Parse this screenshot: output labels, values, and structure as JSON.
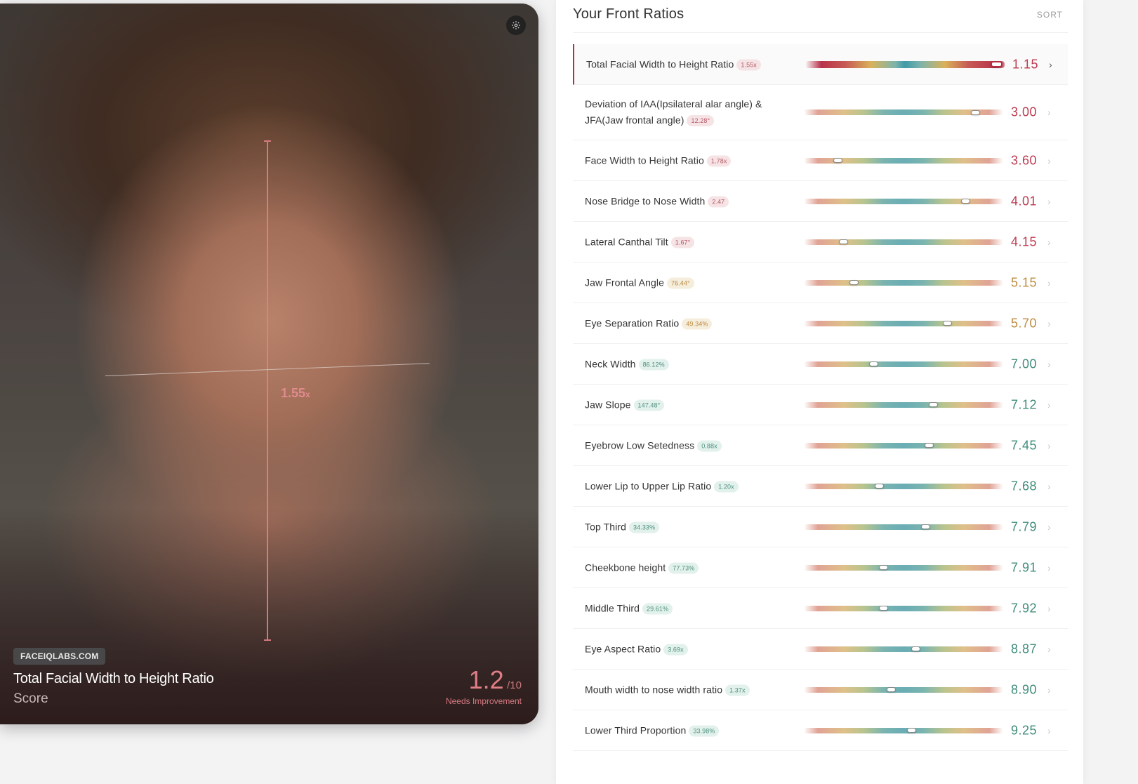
{
  "photo": {
    "measurement_value": "1.55",
    "measurement_unit": "x",
    "brand": "FACEIQLABS.COM",
    "title": "Total Facial Width to Height Ratio",
    "subtitle": "Score",
    "score": "1.2",
    "score_max": "/10",
    "score_status": "Needs Improvement",
    "icons": {
      "settings": "gear-icon"
    }
  },
  "panel": {
    "title": "Your Front Ratios",
    "sort_label": "SORT",
    "colors": {
      "red": "#bd3a4f",
      "orange": "#bf8b3f",
      "green": "#3f8c7a"
    },
    "ratios": [
      {
        "label": "Total Facial Width to Height Ratio",
        "value": "1.55x",
        "score": "1.15",
        "tone": "red",
        "marker": 0.96
      },
      {
        "label": "Deviation of IAA(Ipsilateral alar angle) & JFA(Jaw frontal angle)",
        "value": "12.28°",
        "score": "3.00",
        "tone": "red",
        "marker": 0.86
      },
      {
        "label": "Face Width to Height Ratio",
        "value": "1.78x",
        "score": "3.60",
        "tone": "red",
        "marker": 0.17
      },
      {
        "label": "Nose Bridge to Nose Width",
        "value": "2.47",
        "score": "4.01",
        "tone": "red",
        "marker": 0.81
      },
      {
        "label": "Lateral Canthal Tilt",
        "value": "1.67°",
        "score": "4.15",
        "tone": "red",
        "marker": 0.2
      },
      {
        "label": "Jaw Frontal Angle",
        "value": "76.44°",
        "score": "5.15",
        "tone": "orange",
        "marker": 0.25
      },
      {
        "label": "Eye Separation Ratio",
        "value": "49.34%",
        "score": "5.70",
        "tone": "orange",
        "marker": 0.72
      },
      {
        "label": "Neck Width",
        "value": "86.12%",
        "score": "7.00",
        "tone": "green",
        "marker": 0.35
      },
      {
        "label": "Jaw Slope",
        "value": "147.48°",
        "score": "7.12",
        "tone": "green",
        "marker": 0.65
      },
      {
        "label": "Eyebrow Low Setedness",
        "value": "0.88x",
        "score": "7.45",
        "tone": "green",
        "marker": 0.63
      },
      {
        "label": "Lower Lip to Upper Lip Ratio",
        "value": "1.20x",
        "score": "7.68",
        "tone": "green",
        "marker": 0.38
      },
      {
        "label": "Top Third",
        "value": "34.33%",
        "score": "7.79",
        "tone": "green",
        "marker": 0.61
      },
      {
        "label": "Cheekbone height",
        "value": "77.73%",
        "score": "7.91",
        "tone": "green",
        "marker": 0.4
      },
      {
        "label": "Middle Third",
        "value": "29.61%",
        "score": "7.92",
        "tone": "green",
        "marker": 0.4
      },
      {
        "label": "Eye Aspect Ratio",
        "value": "3.69x",
        "score": "8.87",
        "tone": "green",
        "marker": 0.56
      },
      {
        "label": "Mouth width to nose width ratio",
        "value": "1.37x",
        "score": "8.90",
        "tone": "green",
        "marker": 0.44
      },
      {
        "label": "Lower Third Proportion",
        "value": "33.98%",
        "score": "9.25",
        "tone": "green",
        "marker": 0.54
      }
    ]
  }
}
